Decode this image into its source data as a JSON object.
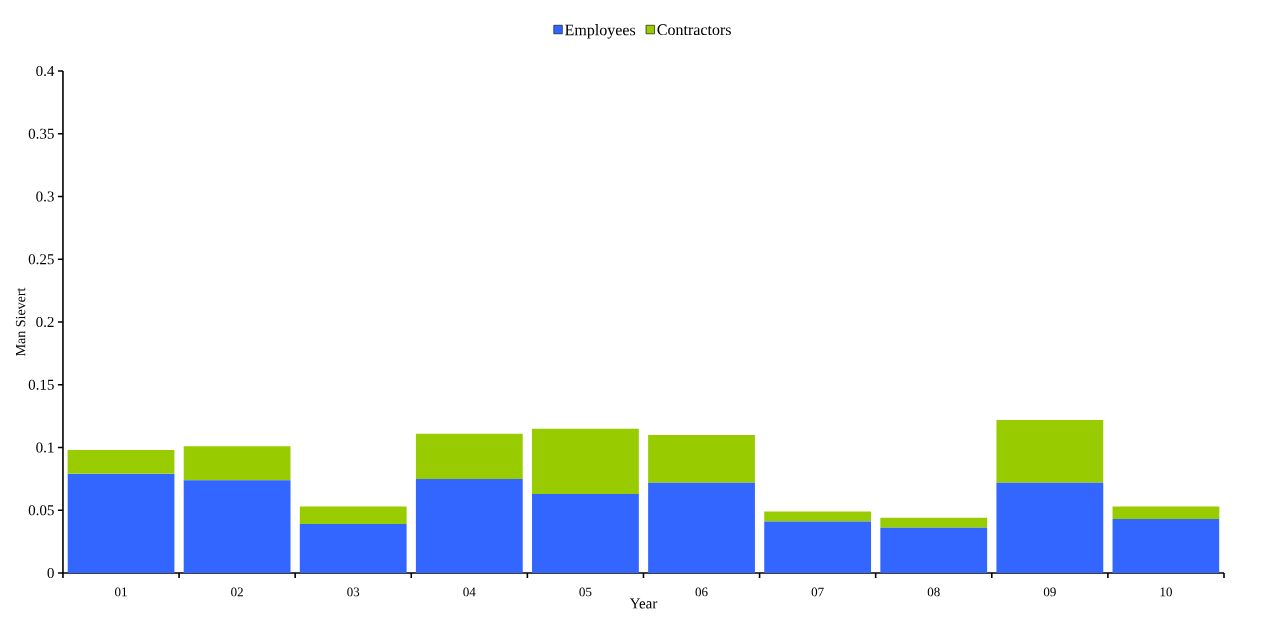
{
  "chart_data": {
    "type": "bar",
    "stacked": true,
    "xlabel": "Year",
    "ylabel": "Man Sievert",
    "categories": [
      "01",
      "02",
      "03",
      "04",
      "05",
      "06",
      "07",
      "08",
      "09",
      "10"
    ],
    "series": [
      {
        "name": "Employees",
        "color": "#3366ff",
        "values": [
          0.079,
          0.074,
          0.039,
          0.075,
          0.063,
          0.072,
          0.041,
          0.036,
          0.072,
          0.043
        ]
      },
      {
        "name": "Contractors",
        "color": "#99cc00",
        "values": [
          0.019,
          0.027,
          0.014,
          0.036,
          0.052,
          0.038,
          0.008,
          0.008,
          0.05,
          0.01
        ]
      }
    ],
    "ylim": [
      0,
      0.4
    ],
    "yticks": [
      0,
      0.05,
      0.1,
      0.15,
      0.2,
      0.25,
      0.3,
      0.35,
      0.4
    ],
    "grid": false,
    "legend": "top"
  }
}
